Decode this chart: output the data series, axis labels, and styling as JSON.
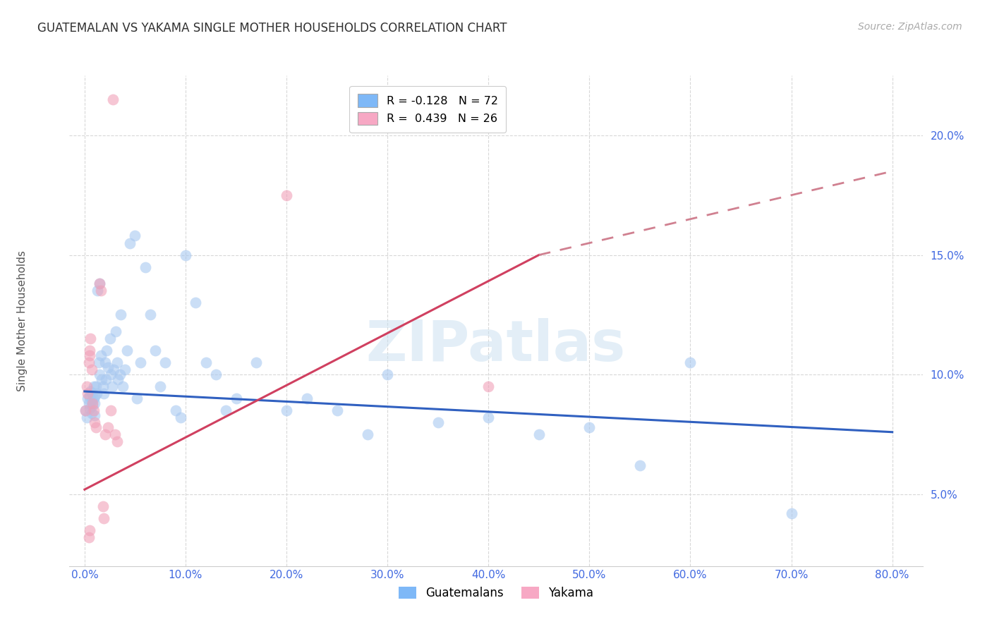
{
  "title": "GUATEMALAN VS YAKAMA SINGLE MOTHER HOUSEHOLDS CORRELATION CHART",
  "source": "Source: ZipAtlas.com",
  "ylabel": "Single Mother Households",
  "x_ticks": [
    0.0,
    10.0,
    20.0,
    30.0,
    40.0,
    50.0,
    60.0,
    70.0,
    80.0
  ],
  "y_ticks": [
    5.0,
    10.0,
    15.0,
    20.0
  ],
  "xlim": [
    -1.5,
    83.0
  ],
  "ylim": [
    2.0,
    22.5
  ],
  "legend_top": [
    {
      "label": "R = -0.128   N = 72",
      "color": "#7eb8f7"
    },
    {
      "label": "R =  0.439   N = 26",
      "color": "#f7a8c4"
    }
  ],
  "legend_bottom": [
    {
      "label": "Guatemalans",
      "color": "#7eb8f7"
    },
    {
      "label": "Yakama",
      "color": "#f7a8c4"
    }
  ],
  "guatemalan_dots": [
    [
      0.1,
      8.5
    ],
    [
      0.2,
      8.2
    ],
    [
      0.3,
      9.0
    ],
    [
      0.4,
      8.8
    ],
    [
      0.5,
      9.1
    ],
    [
      0.5,
      8.6
    ],
    [
      0.6,
      9.3
    ],
    [
      0.7,
      8.4
    ],
    [
      0.7,
      8.9
    ],
    [
      0.8,
      9.2
    ],
    [
      0.8,
      8.7
    ],
    [
      0.9,
      9.5
    ],
    [
      0.9,
      9.0
    ],
    [
      1.0,
      8.3
    ],
    [
      1.0,
      9.1
    ],
    [
      1.0,
      8.8
    ],
    [
      1.1,
      9.5
    ],
    [
      1.2,
      9.2
    ],
    [
      1.3,
      13.5
    ],
    [
      1.4,
      10.5
    ],
    [
      1.5,
      13.8
    ],
    [
      1.5,
      10.0
    ],
    [
      1.6,
      10.8
    ],
    [
      1.7,
      9.8
    ],
    [
      1.8,
      9.5
    ],
    [
      1.9,
      9.2
    ],
    [
      2.0,
      10.5
    ],
    [
      2.1,
      9.8
    ],
    [
      2.2,
      11.0
    ],
    [
      2.3,
      10.3
    ],
    [
      2.5,
      11.5
    ],
    [
      2.6,
      10.0
    ],
    [
      2.7,
      9.5
    ],
    [
      2.9,
      10.2
    ],
    [
      3.1,
      11.8
    ],
    [
      3.2,
      10.5
    ],
    [
      3.3,
      9.8
    ],
    [
      3.5,
      10.0
    ],
    [
      3.6,
      12.5
    ],
    [
      3.8,
      9.5
    ],
    [
      4.0,
      10.2
    ],
    [
      4.2,
      11.0
    ],
    [
      4.5,
      15.5
    ],
    [
      5.0,
      15.8
    ],
    [
      5.2,
      9.0
    ],
    [
      5.5,
      10.5
    ],
    [
      6.0,
      14.5
    ],
    [
      6.5,
      12.5
    ],
    [
      7.0,
      11.0
    ],
    [
      7.5,
      9.5
    ],
    [
      8.0,
      10.5
    ],
    [
      9.0,
      8.5
    ],
    [
      9.5,
      8.2
    ],
    [
      10.0,
      15.0
    ],
    [
      11.0,
      13.0
    ],
    [
      12.0,
      10.5
    ],
    [
      13.0,
      10.0
    ],
    [
      14.0,
      8.5
    ],
    [
      15.0,
      9.0
    ],
    [
      17.0,
      10.5
    ],
    [
      20.0,
      8.5
    ],
    [
      22.0,
      9.0
    ],
    [
      25.0,
      8.5
    ],
    [
      28.0,
      7.5
    ],
    [
      30.0,
      10.0
    ],
    [
      35.0,
      8.0
    ],
    [
      40.0,
      8.2
    ],
    [
      45.0,
      7.5
    ],
    [
      50.0,
      7.8
    ],
    [
      55.0,
      6.2
    ],
    [
      60.0,
      10.5
    ],
    [
      70.0,
      4.2
    ]
  ],
  "yakama_dots": [
    [
      0.1,
      8.5
    ],
    [
      0.2,
      9.5
    ],
    [
      0.3,
      9.2
    ],
    [
      0.4,
      10.5
    ],
    [
      0.5,
      11.0
    ],
    [
      0.5,
      10.8
    ],
    [
      0.6,
      11.5
    ],
    [
      0.7,
      10.2
    ],
    [
      0.8,
      8.8
    ],
    [
      0.9,
      8.5
    ],
    [
      1.0,
      8.0
    ],
    [
      1.1,
      7.8
    ],
    [
      1.5,
      13.8
    ],
    [
      1.6,
      13.5
    ],
    [
      2.0,
      7.5
    ],
    [
      2.3,
      7.8
    ],
    [
      2.6,
      8.5
    ],
    [
      3.0,
      7.5
    ],
    [
      3.2,
      7.2
    ],
    [
      2.8,
      21.5
    ],
    [
      20.0,
      17.5
    ],
    [
      40.0,
      9.5
    ],
    [
      1.8,
      4.5
    ],
    [
      1.9,
      4.0
    ],
    [
      0.5,
      3.5
    ],
    [
      0.4,
      3.2
    ]
  ],
  "blue_fill_color": "#a8c8f0",
  "pink_fill_color": "#f0a0b8",
  "blue_line_color": "#3060c0",
  "pink_line_color": "#d04060",
  "pink_dash_color": "#d08090",
  "background_color": "#ffffff",
  "grid_color": "#d8d8d8",
  "title_color": "#303030",
  "axis_tick_color": "#4169e1",
  "watermark": "ZIPatlas",
  "blue_line_y0": 9.3,
  "blue_line_y80": 7.6,
  "pink_line_y0": 5.2,
  "pink_line_y45": 15.0,
  "pink_line_y80": 18.5
}
